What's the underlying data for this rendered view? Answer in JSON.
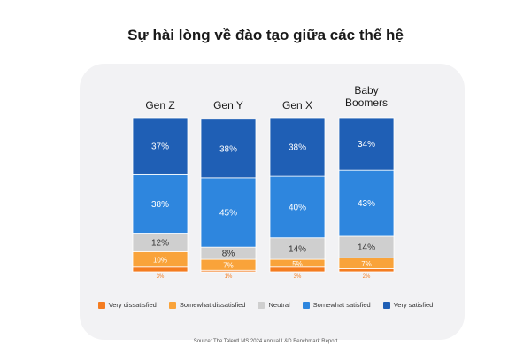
{
  "chart_data": {
    "type": "bar",
    "stacked": true,
    "title": "Sự hài lòng về đào tạo giữa các thế hệ",
    "categories": [
      "Gen Z",
      "Gen Y",
      "Gen X",
      "Baby Boomers"
    ],
    "category_lines": [
      [
        "Gen Z"
      ],
      [
        "Gen Y"
      ],
      [
        "Gen X"
      ],
      [
        "Baby",
        "Boomers"
      ]
    ],
    "series": [
      {
        "name": "Very dissatisfied",
        "color": "#f47c20",
        "values": [
          3,
          1,
          3,
          2
        ],
        "labels": [
          "3%",
          "1%",
          "3%",
          "2%"
        ]
      },
      {
        "name": "Somewhat dissatisfied",
        "color": "#f9a33a",
        "values": [
          10,
          7,
          5,
          7
        ],
        "labels": [
          "10%",
          "7%",
          "5%",
          "7%"
        ]
      },
      {
        "name": "Neutral",
        "color": "#cfcfcf",
        "values": [
          12,
          8,
          14,
          14
        ],
        "labels": [
          "12%",
          "8%",
          "14%",
          "14%"
        ]
      },
      {
        "name": "Somewhat satisfied",
        "color": "#2e86de",
        "values": [
          38,
          45,
          40,
          43
        ],
        "labels": [
          "38%",
          "45%",
          "40%",
          "43%"
        ]
      },
      {
        "name": "Very satisfied",
        "color": "#1f5fb5",
        "values": [
          37,
          38,
          38,
          34
        ],
        "labels": [
          "37%",
          "38%",
          "38%",
          "34%"
        ]
      }
    ],
    "ylim": [
      0,
      100
    ],
    "legend_position": "bottom"
  },
  "source": "Source: The TalentLMS 2024 Annual L&D Benchmark Report"
}
